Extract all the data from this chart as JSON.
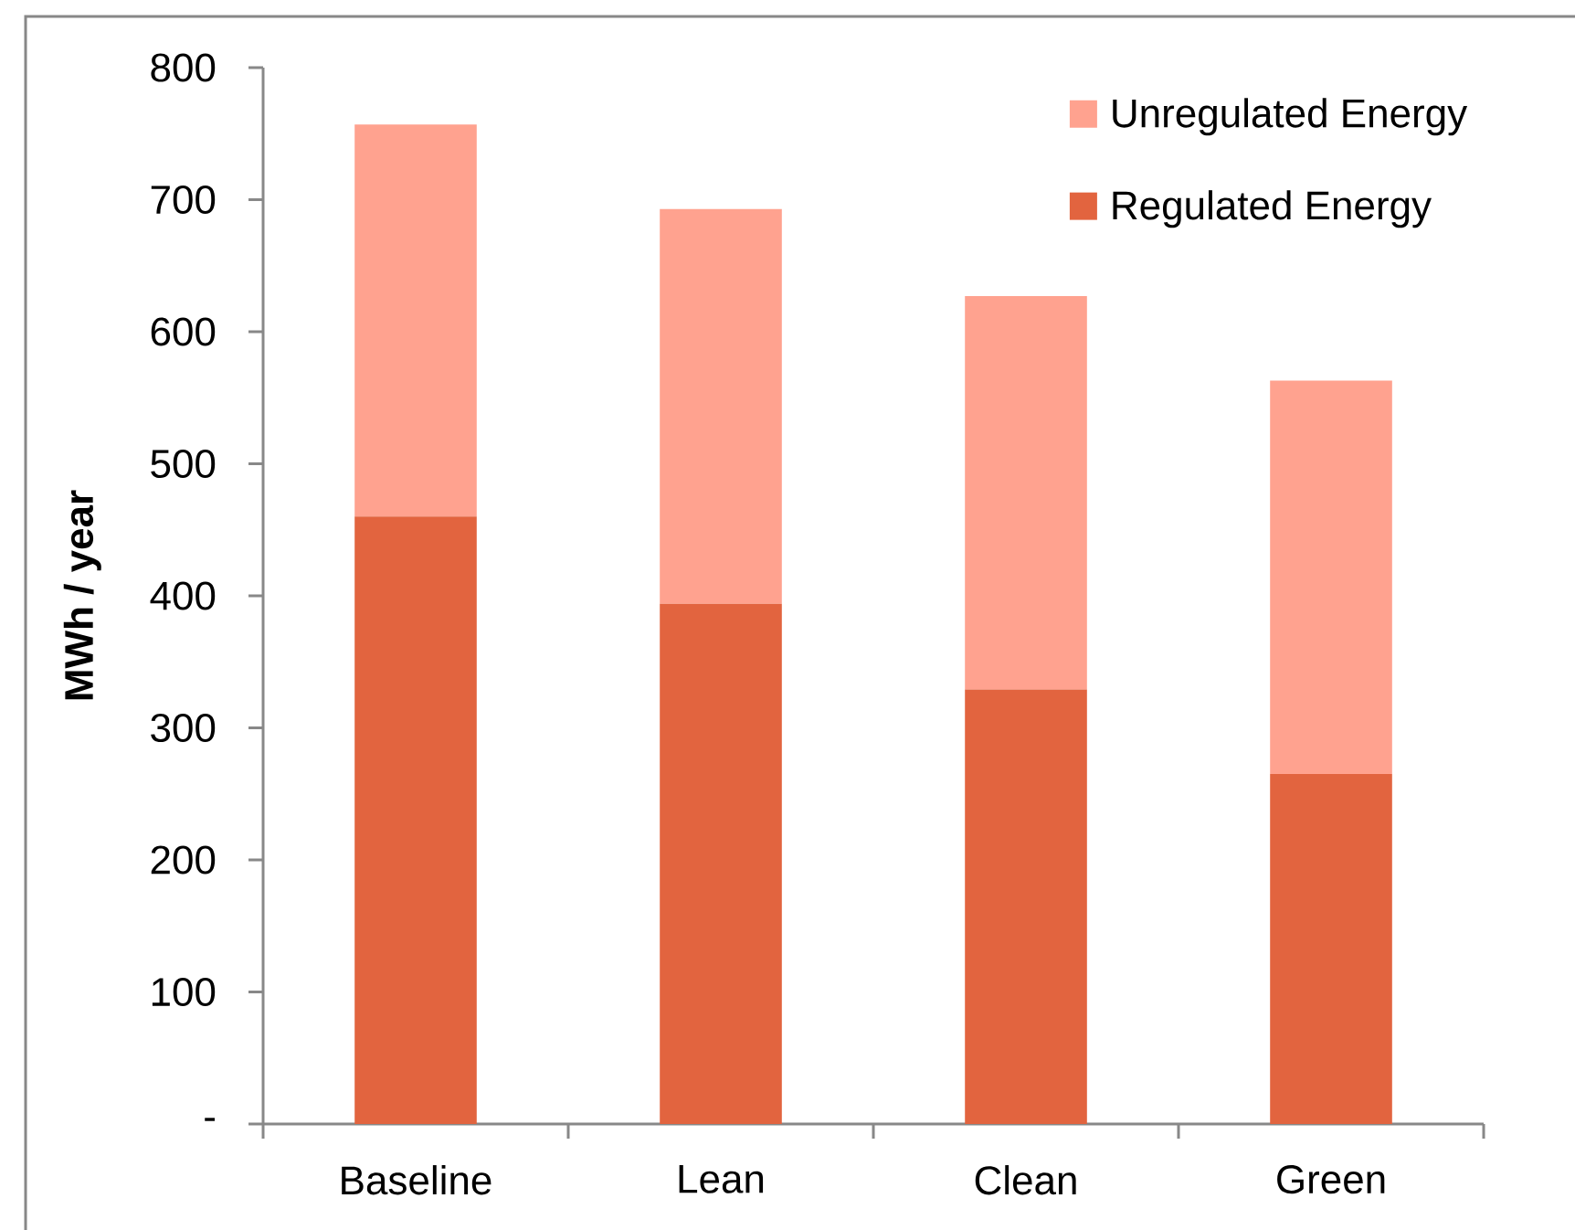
{
  "chart_data": {
    "type": "bar",
    "stacked": true,
    "categories": [
      "Baseline",
      "Lean",
      "Clean",
      "Green"
    ],
    "series": [
      {
        "name": "Regulated Energy",
        "color": "#e2643f",
        "values": [
          460,
          394,
          329,
          265
        ]
      },
      {
        "name": "Unregulated Energy",
        "color": "#ffa28f",
        "values": [
          297,
          299,
          298,
          298
        ]
      }
    ],
    "ylabel": "MWh / year",
    "ylim": [
      0,
      800
    ],
    "yticks": [
      {
        "value": 0,
        "label": "-"
      },
      100,
      200,
      300,
      400,
      500,
      600,
      700,
      800
    ],
    "legend": "top right"
  }
}
